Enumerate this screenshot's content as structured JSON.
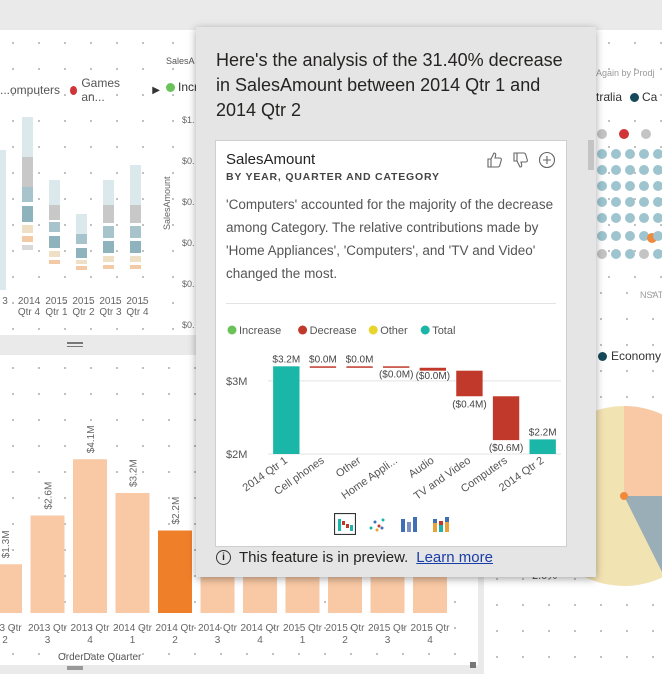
{
  "left_top_visual": {
    "legend": [
      {
        "label": "...omputers",
        "color": "#f0f0f0"
      },
      {
        "label": "Games an...",
        "color": "#d13438"
      }
    ],
    "legend_arrow": "▶",
    "x_ticks": [
      {
        "top": "",
        "bottom": "3"
      },
      {
        "top": "2014",
        "bottom": "Qtr 4"
      },
      {
        "top": "2015",
        "bottom": "Qtr 1"
      },
      {
        "top": "2015",
        "bottom": "Qtr 2"
      },
      {
        "top": "2015",
        "bottom": "Qtr 3"
      },
      {
        "top": "2015",
        "bottom": "Qtr 4"
      }
    ]
  },
  "mid_visual": {
    "title": "SalesA",
    "legend_item": "Incre",
    "y_ticks": [
      "$1.",
      "$0.",
      "$0.",
      "$0.",
      "$0.",
      "$0."
    ],
    "y_label": "SalesAmount"
  },
  "right_top_visual": {
    "title_fragment": "Again by Prodj",
    "legend": [
      "tralia",
      "Ca"
    ]
  },
  "right_mid_visual": {
    "label": "NSAT",
    "legend_item": "Economy",
    "percent": "2.0%"
  },
  "bottom_chart": {
    "x_axis_title": "OrderDate Quarter",
    "bars": [
      {
        "label": "$1.3M",
        "value": 1.3,
        "cat_top": "013 Qtr",
        "cat_bottom": "2",
        "highlight": false
      },
      {
        "label": "$2.6M",
        "value": 2.6,
        "cat_top": "2013 Qtr",
        "cat_bottom": "3",
        "highlight": false
      },
      {
        "label": "$4.1M",
        "value": 4.1,
        "cat_top": "2013 Qtr",
        "cat_bottom": "4",
        "highlight": false
      },
      {
        "label": "$3.2M",
        "value": 3.2,
        "cat_top": "2014 Qtr",
        "cat_bottom": "1",
        "highlight": false
      },
      {
        "label": "$2.2M",
        "value": 2.2,
        "cat_top": "2014 Qtr",
        "cat_bottom": "2",
        "highlight": true
      },
      {
        "label": "",
        "value": 0,
        "cat_top": "2014 Qtr",
        "cat_bottom": "3",
        "highlight": false
      },
      {
        "label": "",
        "value": 0,
        "cat_top": "2014 Qtr",
        "cat_bottom": "4",
        "highlight": false
      },
      {
        "label": "",
        "value": 0,
        "cat_top": "2015 Qtr",
        "cat_bottom": "1",
        "highlight": false
      },
      {
        "label": "",
        "value": 0,
        "cat_top": "2015 Qtr",
        "cat_bottom": "2",
        "highlight": false
      },
      {
        "label": "",
        "value": 0,
        "cat_top": "2015 Qtr",
        "cat_bottom": "3",
        "highlight": false
      },
      {
        "label": "",
        "value": 0,
        "cat_top": "2015 Qtr",
        "cat_bottom": "4",
        "highlight": false
      }
    ],
    "colors": {
      "normal": "#f9c9a5",
      "highlight": "#f07f2a"
    }
  },
  "popup": {
    "heading": "Here's the analysis of the 31.40% decrease in SalesAmount between 2014 Qtr 1 and 2014 Qtr 2",
    "card": {
      "title": "SalesAmount",
      "subtitle": "BY YEAR, QUARTER AND CATEGORY",
      "description": "'Computers' accounted for the majority of the decrease among Category. The relative contributions made by 'Home Appliances', 'Computers', and 'TV and Video' changed the most.",
      "icons": [
        "thumbs-up-icon",
        "thumbs-down-icon",
        "add-icon"
      ]
    },
    "preview_text": "This feature is in preview.",
    "learn_more": "Learn more"
  },
  "chart_data": {
    "type": "bar",
    "subtype": "waterfall",
    "legend": [
      {
        "name": "Increase",
        "color": "#6ac259"
      },
      {
        "name": "Decrease",
        "color": "#c0392b"
      },
      {
        "name": "Other",
        "color": "#e8d42a"
      },
      {
        "name": "Total",
        "color": "#1ab6a8"
      }
    ],
    "categories": [
      "2014 Qtr 1",
      "Cell phones",
      "Other",
      "Home Appli...",
      "Audio",
      "TV and Video",
      "Computers",
      "2014 Qtr 2"
    ],
    "values": [
      3.2,
      0.0,
      0.0,
      -0.02,
      -0.04,
      -0.35,
      -0.6,
      2.2
    ],
    "kinds": [
      "Total",
      "Decrease",
      "Decrease",
      "Decrease",
      "Decrease",
      "Decrease",
      "Decrease",
      "Total"
    ],
    "data_labels": [
      "$3.2M",
      "$0.0M",
      "$0.0M",
      "($0.0M)",
      "($0.0M)",
      "($0.4M)",
      "($0.6M)",
      "$2.2M"
    ],
    "y_ticks": [
      "$3M",
      "$2M"
    ],
    "y_tick_values": [
      3,
      2
    ],
    "ylim": [
      2,
      3.3
    ],
    "grid": true,
    "legend_position": "top-left"
  },
  "viz_switcher": [
    "waterfall-icon",
    "scatter-icon",
    "column-icon",
    "stacked-column-icon"
  ]
}
